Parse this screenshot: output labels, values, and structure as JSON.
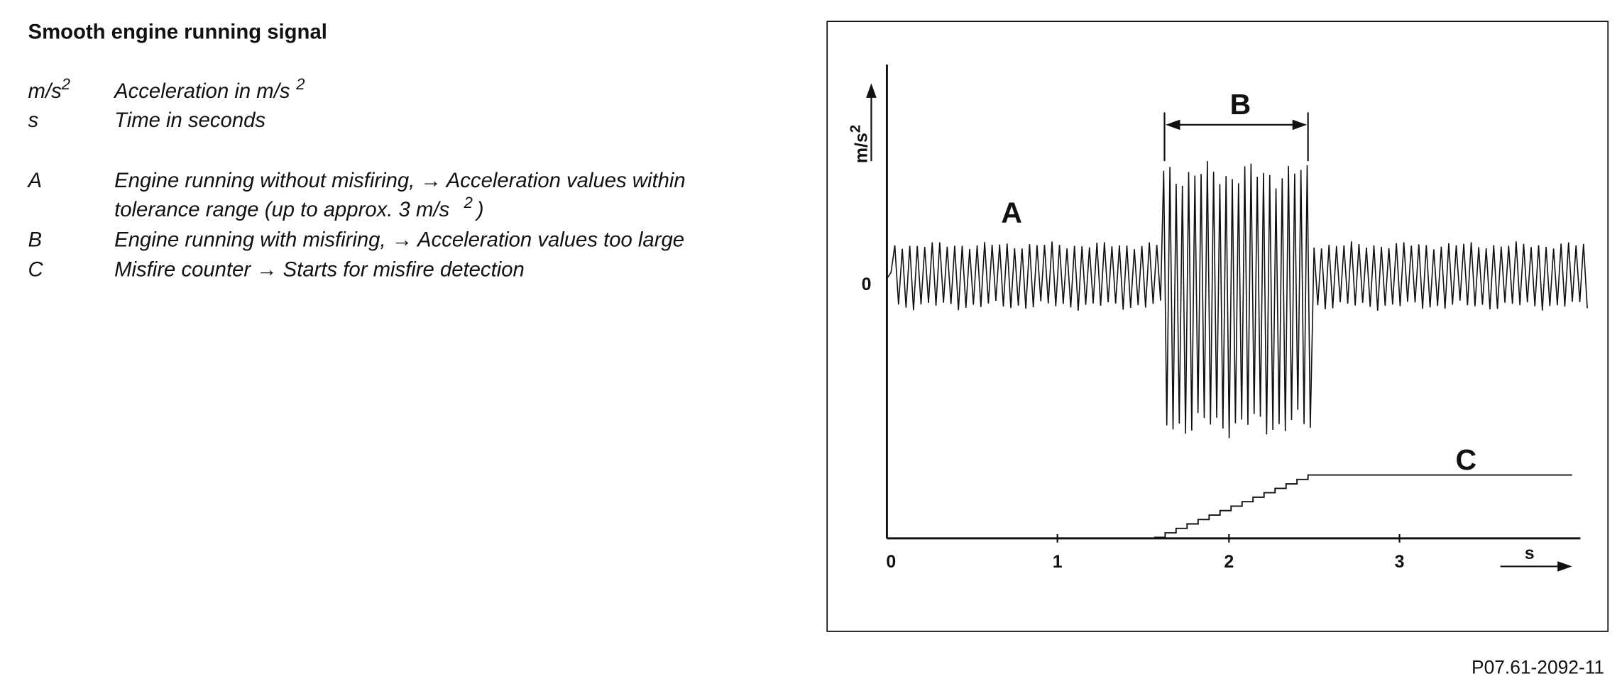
{
  "header": {
    "title": "Smooth engine running signal"
  },
  "legend": [
    {
      "key": "m/s",
      "key_sup": "2",
      "text": "Acceleration in m/s",
      "text_sup": "2"
    },
    {
      "key": "s",
      "text": "Time in seconds"
    },
    {
      "key": "A",
      "text": "Engine running without misfiring, → Acceleration values within",
      "text2": "tolerance range (up to approx. 3 m/s",
      "text2_sup": "2",
      "text2_end": ")"
    },
    {
      "key": "B",
      "text": "Engine running with misfiring, → Acceleration values too large"
    },
    {
      "key": "C",
      "text": "Misfire counter  → Starts for misfire detection"
    }
  ],
  "diagram": {
    "y_axis_label": "m/s",
    "y_axis_label_sup": "2",
    "y_zero": "0",
    "x_ticks": [
      "0",
      "1",
      "2",
      "3"
    ],
    "x_axis_label": "s",
    "label_a": "A",
    "label_b": "B",
    "label_c": "C"
  },
  "footer": {
    "code": "P07.61-2092-11"
  }
}
